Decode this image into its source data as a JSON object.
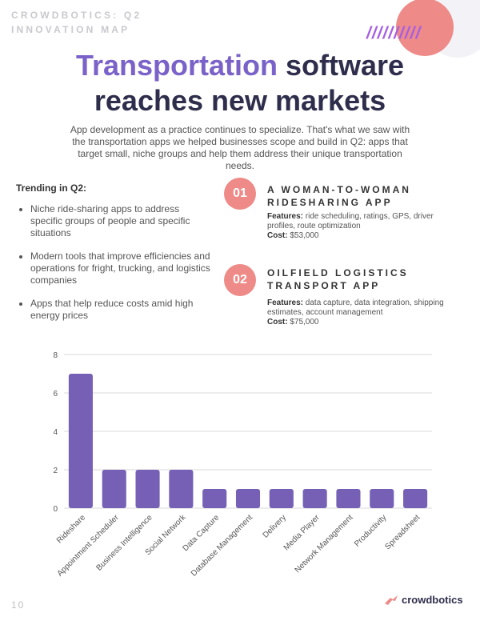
{
  "header": {
    "kicker": "CROWDBOTICS: Q2 INNOVATION MAP",
    "slashes": "//////////"
  },
  "headline": {
    "accent": "Transportation",
    "rest_line1": " software",
    "line2": "reaches new markets"
  },
  "intro": "App development as a practice continues to specialize. That's what we saw with the transportation apps we helped businesses scope and build in Q2: apps that target small, niche groups and help them address their unique transportation needs.",
  "trending": {
    "title": "Trending in Q2:",
    "items": [
      "Niche ride-sharing apps to address specific groups of people and specific situations",
      "Modern tools that improve efficiencies and operations for fright, trucking, and logistics companies",
      "Apps that help reduce costs amid high energy prices"
    ]
  },
  "apps": [
    {
      "number": "01",
      "title": "A WOMAN-TO-WOMAN RIDESHARING APP",
      "features_label": "Features:",
      "features": " ride scheduling, ratings, GPS, driver profiles, route optimization",
      "cost_label": "Cost:",
      "cost": " $53,000"
    },
    {
      "number": "02",
      "title": "OILFIELD LOGISTICS TRANSPORT APP",
      "features_label": "Features:",
      "features": " data capture, data integration, shipping estimates, account management",
      "cost_label": "Cost:",
      "cost": " $75,000"
    }
  ],
  "chart_data": {
    "type": "bar",
    "title": "",
    "xlabel": "",
    "ylabel": "",
    "categories": [
      "Rideshare",
      "Appointment Scheduler",
      "Business Intelligence",
      "Social Network",
      "Data Capture",
      "Database Management",
      "Delivery",
      "Media Player",
      "Network Management",
      "Productivity",
      "Spreadsheet"
    ],
    "values": [
      7,
      2,
      2,
      2,
      1,
      1,
      1,
      1,
      1,
      1,
      1
    ],
    "ylim": [
      0,
      8
    ],
    "yticks": [
      0,
      2,
      4,
      6,
      8
    ],
    "grid": true,
    "bar_color": "#7560b6"
  },
  "footer": {
    "page_number": "10",
    "logo_text": "crowdbotics"
  },
  "colors": {
    "accent_purple": "#7a62c8",
    "coral": "#ee8a88",
    "navy": "#2e2e4c"
  }
}
